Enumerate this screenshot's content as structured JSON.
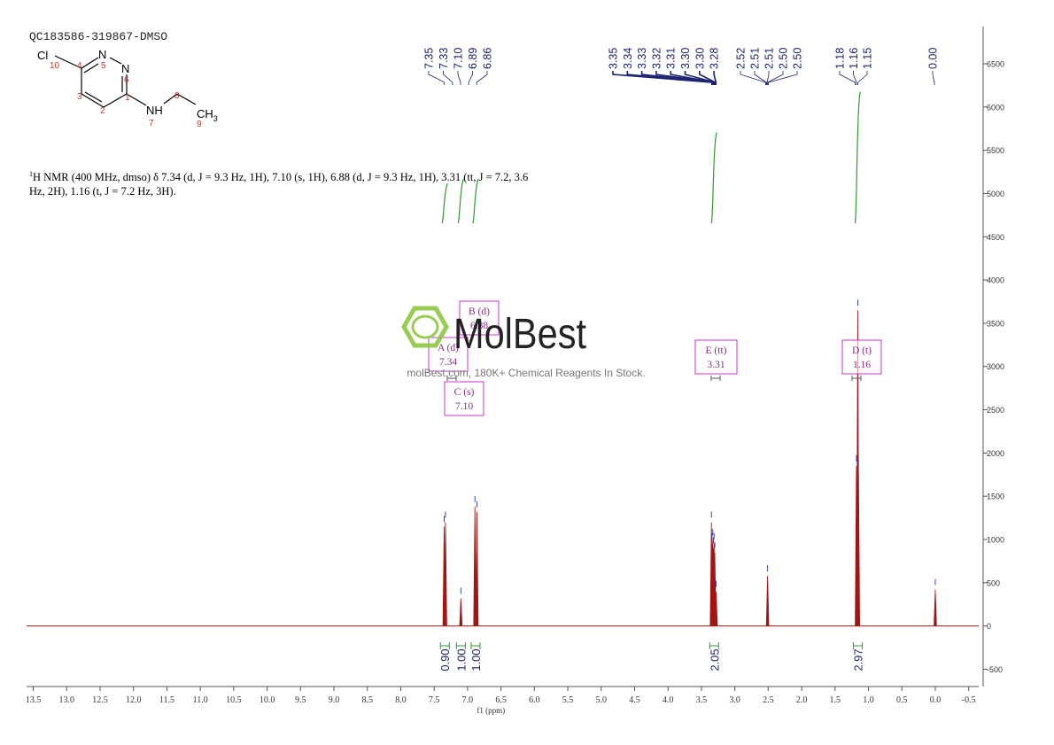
{
  "title": "QC183586-319867-DMSO",
  "molecule": {
    "atoms": [
      "Cl",
      "N",
      "N",
      "NH",
      "CH"
    ],
    "subscript": "3",
    "numbers": [
      "10",
      "4",
      "5",
      "6",
      "1",
      "3",
      "2",
      "7",
      "8",
      "9"
    ]
  },
  "description": {
    "superscript": "1",
    "text": "H NMR (400 MHz, dmso) δ 7.34 (d, J = 9.3 Hz, 1H), 7.10 (s, 1H), 6.88 (d, J = 9.3 Hz, 1H), 3.31 (tt, J = 7.2, 3.6 Hz, 2H), 1.16 (t, J = 7.2 Hz, 3H)."
  },
  "watermark": {
    "brand": "MolBest",
    "tagline": "molBest.com, 180K+ Chemical Reagents In Stock."
  },
  "chart_data": {
    "type": "spectrum",
    "x_label": "f1 (ppm)",
    "x": [
      7.35,
      7.33,
      7.1,
      6.89,
      6.86,
      3.35,
      3.34,
      3.33,
      3.32,
      3.31,
      3.3,
      3.28,
      2.51,
      1.18,
      1.16,
      1.15,
      0
    ],
    "values": [
      1150,
      1200,
      320,
      1380,
      1320,
      1200,
      950,
      1000,
      900,
      950,
      850,
      400,
      580,
      1850,
      3650,
      1800,
      420
    ],
    "color": "#a31515",
    "xlim": [
      13.6,
      -0.65
    ],
    "xticks": [
      13.5,
      {
        "value": 13,
        "label": "13.0"
      },
      12.5,
      {
        "value": 12,
        "label": "12.0"
      },
      11.5,
      {
        "value": 11,
        "label": "11.0"
      },
      10.5,
      {
        "value": 10,
        "label": "10.0"
      },
      9.5,
      {
        "value": 9,
        "label": "9.0"
      },
      8.5,
      {
        "value": 8,
        "label": "8.0"
      },
      7.5,
      {
        "value": 7,
        "label": "7.0"
      },
      6.5,
      {
        "value": 6,
        "label": "6.0"
      },
      5.5,
      {
        "value": 5,
        "label": "5.0"
      },
      4.5,
      {
        "value": 4,
        "label": "4.0"
      },
      3.5,
      {
        "value": 3,
        "label": "3.0"
      },
      2.5,
      {
        "value": 2,
        "label": "2.0"
      },
      1.5,
      {
        "value": 1,
        "label": "1.0"
      },
      0.5,
      {
        "value": 0,
        "label": "0.0"
      },
      -0.5
    ],
    "ylim": [
      -700,
      6930
    ],
    "yticks": [
      -500,
      0,
      500,
      1000,
      1500,
      2000,
      2500,
      3000,
      3500,
      4000,
      4500,
      5000,
      5500,
      6000,
      6500
    ],
    "peak_labels": [
      [
        "7.35",
        "7.33",
        "7.10",
        "6.89",
        "6.86"
      ],
      [
        "3.35",
        "3.34",
        "3.33",
        "3.32",
        "3.31",
        "3.30",
        "3.30",
        "3.28"
      ],
      [
        "2.52",
        "2.51",
        "2.51",
        "2.50",
        "2.50"
      ],
      [
        "1.18",
        "1.16",
        "1.15"
      ],
      [
        "0.00"
      ]
    ],
    "multiplets": [
      {
        "label": "A (d)",
        "shift": "7.34"
      },
      {
        "label": "B (d)",
        "shift": "6.88"
      },
      {
        "label": "C (s)",
        "shift": "7.10"
      },
      {
        "label": "E (tt)",
        "shift": "3.31"
      },
      {
        "label": "D (t)",
        "shift": "1.16"
      }
    ],
    "integrals": {
      "x": [
        7.34,
        7.1,
        6.88,
        3.31,
        1.16
      ],
      "values": [
        0.9,
        1,
        1,
        2.05,
        2.97
      ],
      "value_labels": [
        "0.90",
        "1.00",
        "1.00",
        "2.05",
        "2.97"
      ],
      "color": "#2e9a2e"
    }
  }
}
